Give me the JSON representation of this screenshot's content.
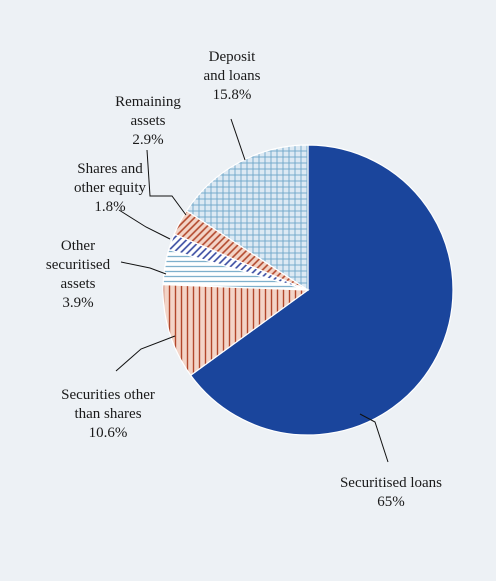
{
  "chart_data": {
    "type": "pie",
    "title": "",
    "start_angle_deg": 0,
    "direction": "clockwise",
    "slices": [
      {
        "label_lines": [
          "Securitised loans",
          "65%"
        ],
        "value": 65,
        "pattern": "solid",
        "color": "#1a459c",
        "stripe": "#1a459c"
      },
      {
        "label_lines": [
          "Securities other",
          "than shares",
          "10.6%"
        ],
        "value": 10.6,
        "pattern": "vertical",
        "color": "#f3d4c7",
        "stripe": "#b2472b"
      },
      {
        "label_lines": [
          "Other",
          "securitised",
          "assets",
          "3.9%"
        ],
        "value": 3.9,
        "pattern": "horizontal",
        "color": "#ffffff",
        "stripe": "#7fb0cc"
      },
      {
        "label_lines": [
          "Shares and",
          "other equity",
          "1.8%"
        ],
        "value": 1.8,
        "pattern": "diagonal",
        "color": "#ffffff",
        "stripe": "#3548a0"
      },
      {
        "label_lines": [
          "Remaining",
          "assets",
          "2.9%"
        ],
        "value": 2.9,
        "pattern": "diagonal",
        "color": "#f3d4c7",
        "stripe": "#b2472b"
      },
      {
        "label_lines": [
          "Deposit",
          "and loans",
          "15.8%"
        ],
        "value": 15.8,
        "pattern": "grid",
        "color": "#dce9f3",
        "stripe": "#6ea6c8"
      }
    ]
  }
}
